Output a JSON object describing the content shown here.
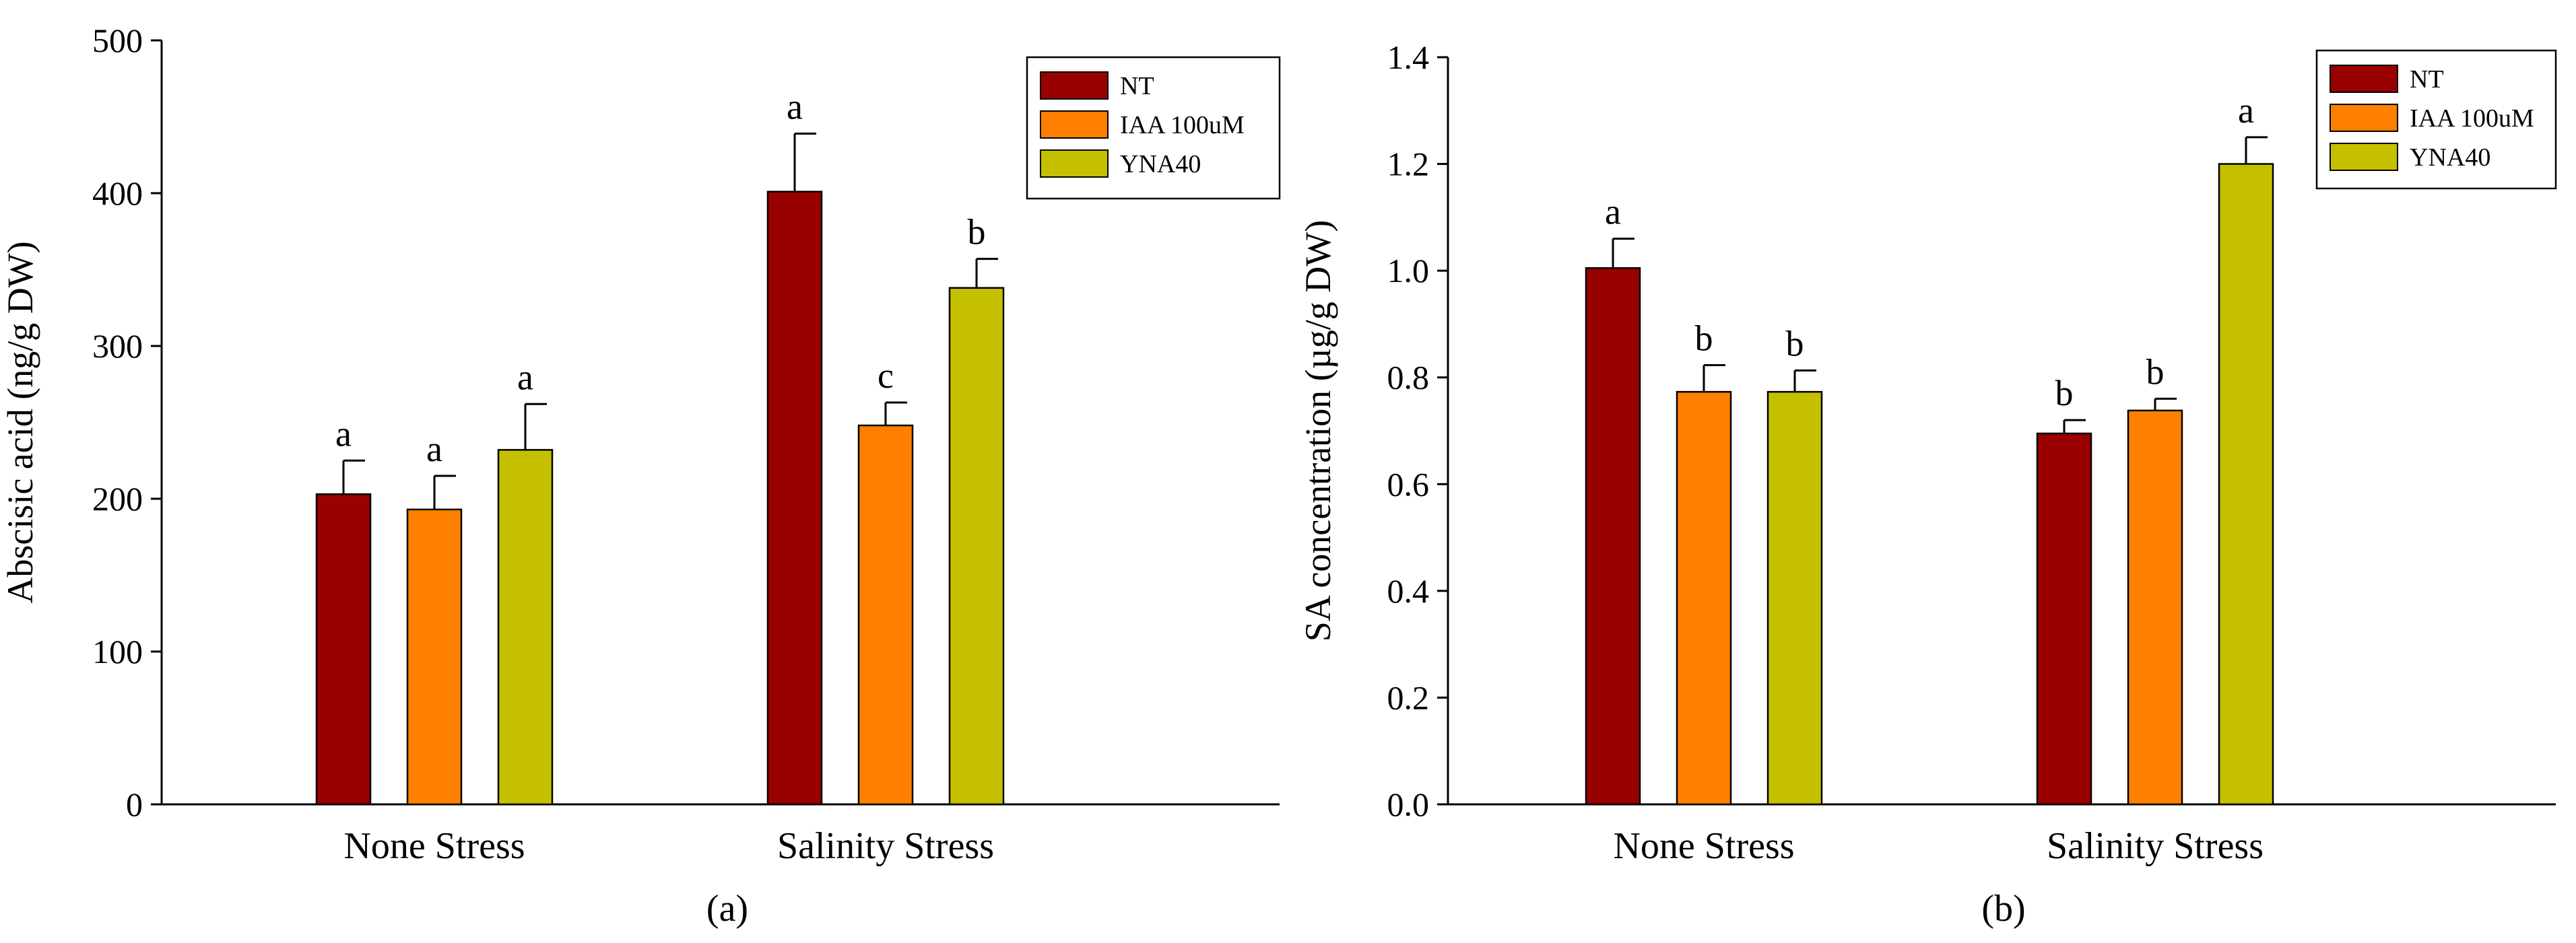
{
  "colors": {
    "NT": "#990000",
    "IAA 100uM": "#ff8000",
    "YNA40": "#c4c000",
    "axis": "#000000"
  },
  "chart_data": [
    {
      "type": "bar",
      "panel_label": "(a)",
      "ylabel": "Abscisic acid (ng/g DW)",
      "ylim": [
        0,
        500
      ],
      "yticks": [
        "0",
        "100",
        "200",
        "300",
        "400",
        "500"
      ],
      "categories": [
        "None Stress",
        "Salinity Stress"
      ],
      "legend": {
        "placement": "top-right",
        "entries": [
          "NT",
          "IAA 100uM",
          "YNA40"
        ]
      },
      "series": [
        {
          "name": "NT",
          "values": [
            203,
            401
          ],
          "errors": [
            22,
            38
          ],
          "letters": [
            "a",
            "a"
          ]
        },
        {
          "name": "IAA 100uM",
          "values": [
            193,
            248
          ],
          "errors": [
            22,
            15
          ],
          "letters": [
            "a",
            "c"
          ]
        },
        {
          "name": "YNA40",
          "values": [
            232,
            338
          ],
          "errors": [
            30,
            19
          ],
          "letters": [
            "a",
            "b"
          ]
        }
      ]
    },
    {
      "type": "bar",
      "panel_label": "(b)",
      "ylabel": "SA concentration (µg/g DW)",
      "ylim": [
        0,
        1.4
      ],
      "yticks": [
        "0.0",
        "0.2",
        "0.4",
        "0.6",
        "0.8",
        "1.0",
        "1.2",
        "1.4"
      ],
      "categories": [
        "None Stress",
        "Salinity Stress"
      ],
      "legend": {
        "placement": "top-right",
        "entries": [
          "NT",
          "IAA 100uM",
          "YNA40"
        ]
      },
      "series": [
        {
          "name": "NT",
          "values": [
            1.005,
            0.695
          ],
          "errors": [
            0.055,
            0.025
          ],
          "letters": [
            "a",
            "b"
          ]
        },
        {
          "name": "IAA 100uM",
          "values": [
            0.773,
            0.738
          ],
          "errors": [
            0.05,
            0.022
          ],
          "letters": [
            "b",
            "b"
          ]
        },
        {
          "name": "YNA40",
          "values": [
            0.773,
            1.2
          ],
          "errors": [
            0.04,
            0.05
          ],
          "letters": [
            "b",
            "a"
          ]
        }
      ]
    }
  ]
}
